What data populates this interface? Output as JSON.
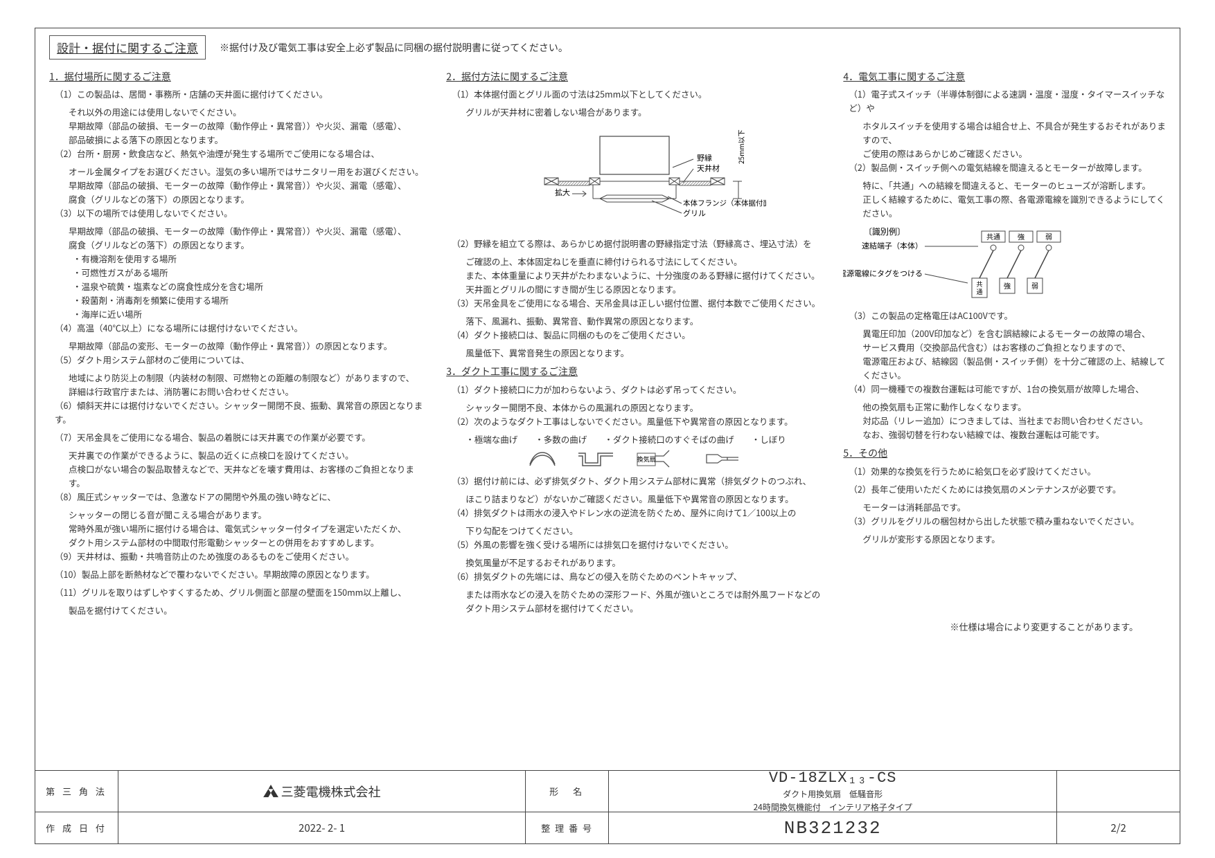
{
  "title": "設計・据付に関するご注意",
  "header_note": "※据付け及び電気工事は安全上必ず製品に同梱の据付説明書に従ってください。",
  "section1": {
    "title": "1．据付場所に関するご注意",
    "items": [
      {
        "num": "（1）",
        "text": "この製品は、居間・事務所・店舗の天井面に据付けてください。",
        "lines": [
          "それ以外の用途には使用しないでください。",
          "早期故障（部品の破損、モーターの故障（動作停止・異常音））や火災、漏電（感電）、",
          "部品破損による落下の原因となります。"
        ]
      },
      {
        "num": "（2）",
        "text": "台所・厨房・飲食店など、熱気や油煙が発生する場所でご使用になる場合は、",
        "lines": [
          "オール金属タイプをお選びください。湿気の多い場所ではサニタリー用をお選びください。",
          "早期故障（部品の破損、モーターの故障（動作停止・異常音））や火災、漏電（感電）、",
          "腐食（グリルなどの落下）の原因となります。"
        ]
      },
      {
        "num": "（3）",
        "text": "以下の場所では使用しないでください。",
        "lines": [
          "早期故障（部品の破損、モーターの故障（動作停止・異常音））や火災、漏電（感電）、",
          "腐食（グリルなどの落下）の原因となります。"
        ],
        "bullets": [
          "・有機溶剤を使用する場所",
          "・可燃性ガスがある場所",
          "・温泉や硫黄・塩素などの腐食性成分を含む場所",
          "・殺菌剤・消毒剤を頻繁に使用する場所",
          "・海岸に近い場所"
        ]
      },
      {
        "num": "（4）",
        "text": "高温（40℃以上）になる場所には据付けないでください。",
        "lines": [
          "早期故障（部品の変形、モーターの故障（動作停止・異常音））の原因となります。"
        ]
      },
      {
        "num": "（5）",
        "text": "ダクト用システム部材のご使用については、",
        "lines": [
          "地域により防災上の制限（内装材の制限、可燃物との距離の制限など）がありますので、",
          "詳細は行政官庁または、消防署にお問い合わせください。"
        ]
      },
      {
        "num": "（6）",
        "text": "傾斜天井には据付けないでください。シャッター開閉不良、振動、異常音の原因となります。"
      },
      {
        "num": "（7）",
        "text": "天吊金具をご使用になる場合、製品の着脱には天井裏での作業が必要です。",
        "lines": [
          "天井裏での作業ができるように、製品の近くに点検口を設けてください。",
          "点検口がない場合の製品取替えなどで、天井などを壊す費用は、お客様のご負担となります。"
        ]
      },
      {
        "num": "（8）",
        "text": "風圧式シャッターでは、急激なドアの開閉や外風の強い時などに、",
        "lines": [
          "シャッターの閉じる音が聞こえる場合があります。",
          "常時外風が強い場所に据付ける場合は、電気式シャッター付タイプを選定いただくか、",
          "ダクト用システム部材の中間取付形電動シャッターとの併用をおすすめします。"
        ]
      },
      {
        "num": "（9）",
        "text": "天井材は、振動・共鳴音防止のため強度のあるものをご使用ください。"
      },
      {
        "num": "（10）",
        "text": "製品上部を断熱材などで覆わないでください。早期故障の原因となります。"
      },
      {
        "num": "（11）",
        "text": "グリルを取りはずしやすくするため、グリル側面と部屋の壁面を150mm以上離し、",
        "lines": [
          "製品を据付けてください。"
        ]
      }
    ]
  },
  "section2": {
    "title": "2．据付方法に関するご注意",
    "items": [
      {
        "num": "（1）",
        "text": "本体据付面とグリル面の寸法は25mm以下としてください。",
        "lines": [
          "グリルが天井材に密着しない場合があります。"
        ]
      },
      {
        "num": "（2）",
        "text": "野縁を組立てる際は、あらかじめ据付説明書の野縁指定寸法（野縁高さ、埋込寸法）を",
        "lines": [
          "ご確認の上、本体固定ねじを垂直に締付けられる寸法にしてください。",
          "また、本体重量により天井がたわまないように、十分強度のある野縁に据付けてください。",
          "天井面とグリルの間にすき間が生じる原因となります。"
        ]
      },
      {
        "num": "（3）",
        "text": "天吊金具をご使用になる場合、天吊金具は正しい据付位置、据付本数でご使用ください。",
        "lines": [
          "落下、風漏れ、振動、異常音、動作異常の原因となります。"
        ]
      },
      {
        "num": "（4）",
        "text": "ダクト接続口は、製品に同梱のものをご使用ください。",
        "lines": [
          "風量低下、異常音発生の原因となります。"
        ]
      }
    ]
  },
  "section3": {
    "title": "3．ダクト工事に関するご注意",
    "items": [
      {
        "num": "（1）",
        "text": "ダクト接続口に力が加わらないよう、ダクトは必ず吊ってください。",
        "lines": [
          "シャッター開閉不良、本体からの風漏れの原因となります。"
        ]
      },
      {
        "num": "（2）",
        "text": "次のようなダクト工事はしないでください。風量低下や異常音の原因となります。",
        "lines": [
          "・極端な曲げ　　・多数の曲げ　　・ダクト接続口のすぐそばの曲げ　　・しぼり"
        ]
      },
      {
        "num": "（3）",
        "text": "据付け前には、必ず排気ダクト、ダクト用システム部材に異常（排気ダクトのつぶれ、",
        "lines": [
          "ほこり詰まりなど）がないかご確認ください。風量低下や異常音の原因となります。"
        ]
      },
      {
        "num": "（4）",
        "text": "排気ダクトは雨水の浸入やドレン水の逆流を防ぐため、屋外に向けて1／100以上の",
        "lines": [
          "下り勾配をつけてください。"
        ]
      },
      {
        "num": "（5）",
        "text": "外風の影響を強く受ける場所には排気口を据付けないでください。",
        "lines": [
          "換気風量が不足するおそれがあります。"
        ]
      },
      {
        "num": "（6）",
        "text": "排気ダクトの先端には、鳥などの侵入を防ぐためのベントキャップ、",
        "lines": [
          "または雨水などの浸入を防ぐための深形フード、外風が強いところでは耐外風フードなどの",
          "ダクト用システム部材を据付けてください。"
        ]
      }
    ]
  },
  "section4": {
    "title": "4．電気工事に関するご注意",
    "items": [
      {
        "num": "（1）",
        "text": "電子式スイッチ（半導体制御による速調・温度・湿度・タイマースイッチなど）や",
        "lines": [
          "ホタルスイッチを使用する場合は組合せ上、不具合が発生するおそれがありますので、",
          "ご使用の際はあらかじめご確認ください。"
        ]
      },
      {
        "num": "（2）",
        "text": "製品側・スイッチ側への電気結線を間違えるとモーターが故障します。",
        "lines": [
          "特に、「共通」への結線を間違えると、モーターのヒューズが溶断します。",
          "正しく結線するために、電気工事の際、各電源電線を識別できるようにしてください。"
        ]
      },
      {
        "num": "（3）",
        "text": "この製品の定格電圧はAC100Vです。",
        "lines": [
          "異電圧印加（200V印加など）を含む誤結線によるモーターの故障の場合、",
          "サービス費用（交換部品代含む）はお客様のご負担となりますので、",
          "電源電圧および、結線図（製品側・スイッチ側）を十分ご確認の上、結線してください。"
        ]
      },
      {
        "num": "（4）",
        "text": "同一機種での複数台運転は可能ですが、1台の換気扇が故障した場合、",
        "lines": [
          "他の換気扇も正常に動作しなくなります。",
          "対応品（リレー追加）につきましては、当社までお問い合わせください。",
          "なお、強弱切替を行わない結線では、複数台運転は可能です。"
        ]
      }
    ],
    "wiring": {
      "example_label": "〔識別例〕",
      "terminal": "速結端子（本体）",
      "tag": "電源電線にタグをつける",
      "labels": [
        "共通",
        "強",
        "弱"
      ],
      "tags": [
        "共通",
        "強",
        "弱"
      ]
    }
  },
  "section5": {
    "title": "5．その他",
    "items": [
      {
        "num": "（1）",
        "text": "効果的な換気を行うために給気口を必ず設けてください。"
      },
      {
        "num": "（2）",
        "text": "長年ご使用いただくためには換気扇のメンテナンスが必要です。",
        "lines": [
          "モーターは消耗部品です。"
        ]
      },
      {
        "num": "（3）",
        "text": "グリルをグリルの梱包材から出した状態で積み重ねないでください。",
        "lines": [
          "グリルが変形する原因となります。"
        ]
      }
    ]
  },
  "spec_note": "※仕様は場合により変更することがあります。",
  "diagram_labels": {
    "nobuchi": "野縁",
    "tenjyou": "天井材",
    "kakudai": "拡大",
    "flange": "本体フランジ（本体据付面）",
    "grille": "グリル",
    "dim": "25mm以下",
    "fan": "換気扇"
  },
  "footer": {
    "projection": "第 三 角 法",
    "company": "三菱電機株式会社",
    "model_label": "形　名",
    "model": "VD-18ZLX₁₃-CS",
    "model_desc1": "ダクト用換気扇　低騒音形",
    "model_desc2": "24時間換気機能付　インテリア格子タイプ",
    "date_label": "作 成 日 付",
    "date": "2022- 2- 1",
    "drawing_label": "整 理 番 号",
    "drawing": "NB321232",
    "page": "2/2"
  }
}
